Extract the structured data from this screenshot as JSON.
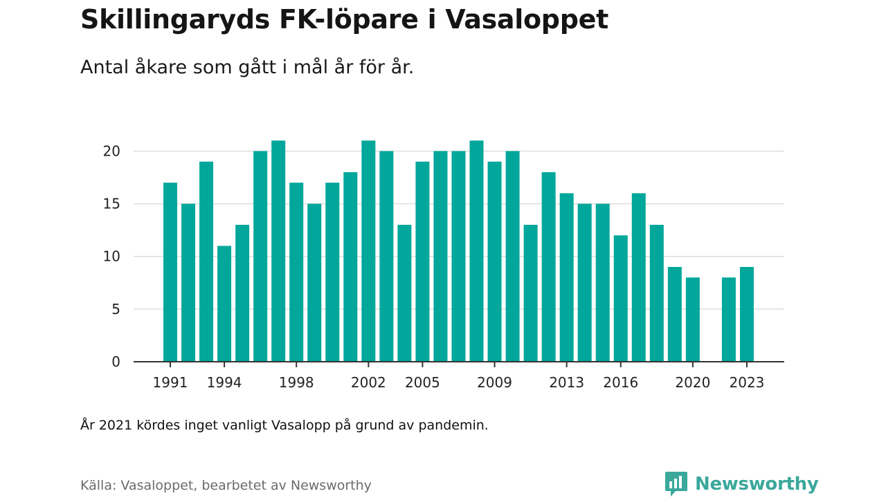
{
  "header": {
    "title": "Skillingaryds FK-löpare i Vasaloppet",
    "subtitle": "Antal åkare som gått i mål år för år."
  },
  "chart_data": {
    "type": "bar",
    "x": [
      1991,
      1992,
      1993,
      1994,
      1995,
      1996,
      1997,
      1998,
      1999,
      2000,
      2001,
      2002,
      2003,
      2004,
      2005,
      2006,
      2007,
      2008,
      2009,
      2010,
      2011,
      2012,
      2013,
      2014,
      2015,
      2016,
      2017,
      2018,
      2019,
      2020,
      2021,
      2022,
      2023
    ],
    "values": [
      17,
      15,
      19,
      11,
      13,
      20,
      21,
      17,
      15,
      17,
      18,
      21,
      20,
      13,
      19,
      20,
      20,
      21,
      19,
      20,
      13,
      18,
      16,
      15,
      15,
      12,
      16,
      13,
      9,
      8,
      null,
      8,
      9
    ],
    "x_tick_labels": [
      "1991",
      "1994",
      "1998",
      "2002",
      "2005",
      "2009",
      "2013",
      "2016",
      "2020",
      "2023"
    ],
    "y_ticks": [
      0,
      5,
      10,
      15,
      20
    ],
    "ylim": [
      0,
      22
    ],
    "grid": true,
    "bar_color": "#00a79a",
    "gridline_color": "#dddddd",
    "axis_color": "#333333",
    "title": "Skillingaryds FK-löpare i Vasaloppet",
    "xlabel": "",
    "ylabel": ""
  },
  "footer": {
    "note": "År 2021 kördes inget vanligt Vasalopp på grund av pandemin.",
    "source": "Källa: Vasaloppet, bearbetet av Newsworthy",
    "brand_name": "Newsworthy",
    "brand_color": "#3aa89b",
    "brand_icon": "bar-chart-speech-bubble-icon"
  }
}
